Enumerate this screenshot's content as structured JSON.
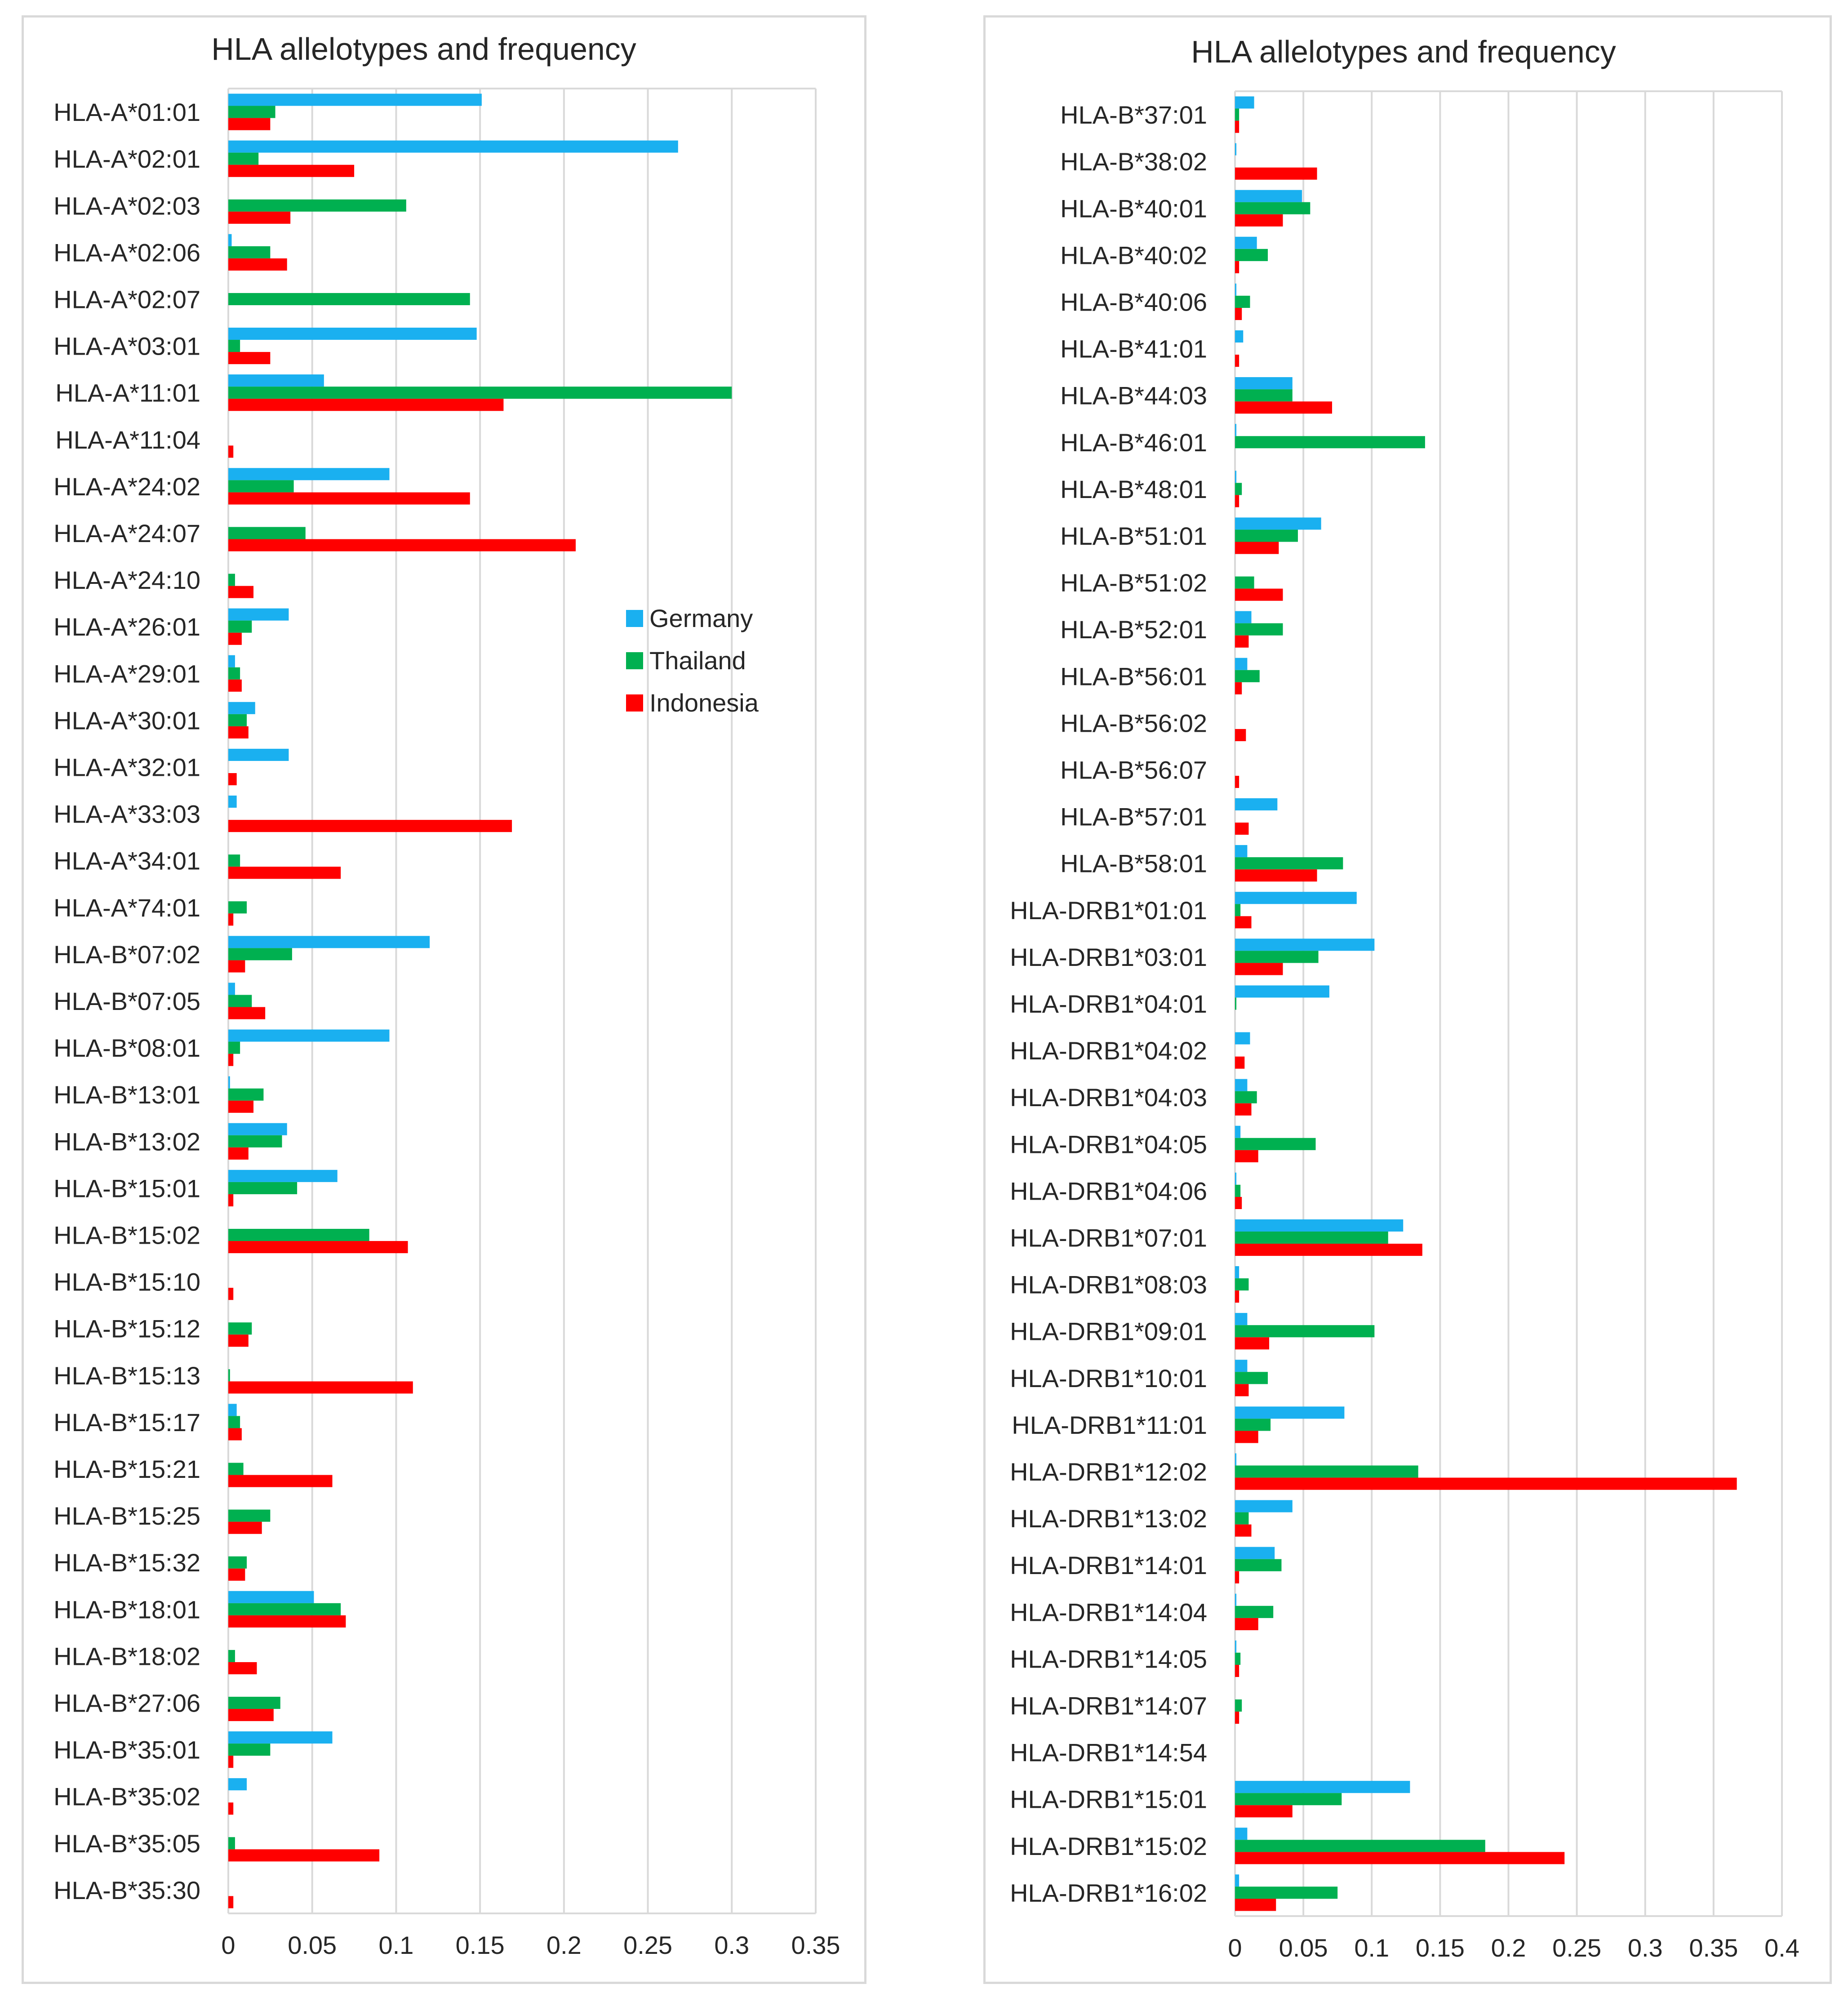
{
  "colors": {
    "Germany": "#1ab0f0",
    "Thailand": "#00b050",
    "Indonesia": "#ff0000",
    "grid": "#d9d9d9",
    "text": "#262626"
  },
  "chart_data": [
    {
      "type": "bar",
      "orientation": "horizontal",
      "title": "HLA allelotypes and frequency",
      "xlim": [
        0,
        0.35
      ],
      "xticks": [
        "0",
        "0.05",
        "0.1",
        "0.15",
        "0.2",
        "0.25",
        "0.3",
        "0.35"
      ],
      "legend": {
        "position": "right-middle",
        "entries": [
          "Germany",
          "Thailand",
          "Indonesia"
        ]
      },
      "categories": [
        "HLA-A*01:01",
        "HLA-A*02:01",
        "HLA-A*02:03",
        "HLA-A*02:06",
        "HLA-A*02:07",
        "HLA-A*03:01",
        "HLA-A*11:01",
        "HLA-A*11:04",
        "HLA-A*24:02",
        "HLA-A*24:07",
        "HLA-A*24:10",
        "HLA-A*26:01",
        "HLA-A*29:01",
        "HLA-A*30:01",
        "HLA-A*32:01",
        "HLA-A*33:03",
        "HLA-A*34:01",
        "HLA-A*74:01",
        "HLA-B*07:02",
        "HLA-B*07:05",
        "HLA-B*08:01",
        "HLA-B*13:01",
        "HLA-B*13:02",
        "HLA-B*15:01",
        "HLA-B*15:02",
        "HLA-B*15:10",
        "HLA-B*15:12",
        "HLA-B*15:13",
        "HLA-B*15:17",
        "HLA-B*15:21",
        "HLA-B*15:25",
        "HLA-B*15:32",
        "HLA-B*18:01",
        "HLA-B*18:02",
        "HLA-B*27:06",
        "HLA-B*35:01",
        "HLA-B*35:02",
        "HLA-B*35:05",
        "HLA-B*35:30"
      ],
      "series": [
        {
          "name": "Germany",
          "values": [
            0.151,
            0.268,
            0,
            0.002,
            0,
            0.148,
            0.057,
            0,
            0.096,
            0,
            0,
            0.036,
            0.004,
            0.016,
            0.036,
            0.005,
            0,
            0,
            0.12,
            0.004,
            0.096,
            0.001,
            0.035,
            0.065,
            0,
            0,
            0,
            0,
            0.005,
            0,
            0,
            0,
            0.051,
            0,
            0,
            0.062,
            0.011,
            0,
            0
          ]
        },
        {
          "name": "Thailand",
          "values": [
            0.028,
            0.018,
            0.106,
            0.025,
            0.144,
            0.007,
            0.3,
            0,
            0.039,
            0.046,
            0.004,
            0.014,
            0.007,
            0.011,
            0,
            0,
            0.007,
            0.011,
            0.038,
            0.014,
            0.007,
            0.021,
            0.032,
            0.041,
            0.084,
            0,
            0.014,
            0.001,
            0.007,
            0.009,
            0.025,
            0.011,
            0.067,
            0.004,
            0.031,
            0.025,
            0,
            0.004,
            0
          ]
        },
        {
          "name": "Indonesia",
          "values": [
            0.025,
            0.075,
            0.037,
            0.035,
            0,
            0.025,
            0.164,
            0.003,
            0.144,
            0.207,
            0.015,
            0.008,
            0.008,
            0.012,
            0.005,
            0.169,
            0.067,
            0.003,
            0.01,
            0.022,
            0.003,
            0.015,
            0.012,
            0.003,
            0.107,
            0.003,
            0.012,
            0.11,
            0.008,
            0.062,
            0.02,
            0.01,
            0.07,
            0.017,
            0.027,
            0.003,
            0.003,
            0.09,
            0.003
          ]
        }
      ]
    },
    {
      "type": "bar",
      "orientation": "horizontal",
      "title": "HLA allelotypes and frequency",
      "xlim": [
        0,
        0.4
      ],
      "xticks": [
        "0",
        "0.05",
        "0.1",
        "0.15",
        "0.2",
        "0.25",
        "0.3",
        "0.35",
        "0.4"
      ],
      "categories": [
        "HLA-B*37:01",
        "HLA-B*38:02",
        "HLA-B*40:01",
        "HLA-B*40:02",
        "HLA-B*40:06",
        "HLA-B*41:01",
        "HLA-B*44:03",
        "HLA-B*46:01",
        "HLA-B*48:01",
        "HLA-B*51:01",
        "HLA-B*51:02",
        "HLA-B*52:01",
        "HLA-B*56:01",
        "HLA-B*56:02",
        "HLA-B*56:07",
        "HLA-B*57:01",
        "HLA-B*58:01",
        "HLA-DRB1*01:01",
        "HLA-DRB1*03:01",
        "HLA-DRB1*04:01",
        "HLA-DRB1*04:02",
        "HLA-DRB1*04:03",
        "HLA-DRB1*04:05",
        "HLA-DRB1*04:06",
        "HLA-DRB1*07:01",
        "HLA-DRB1*08:03",
        "HLA-DRB1*09:01",
        "HLA-DRB1*10:01",
        "HLA-DRB1*11:01",
        "HLA-DRB1*12:02",
        "HLA-DRB1*13:02",
        "HLA-DRB1*14:01",
        "HLA-DRB1*14:04",
        "HLA-DRB1*14:05",
        "HLA-DRB1*14:07",
        "HLA-DRB1*14:54",
        "HLA-DRB1*15:01",
        "HLA-DRB1*15:02",
        "HLA-DRB1*16:02"
      ],
      "series": [
        {
          "name": "Germany",
          "values": [
            0.014,
            0.001,
            0.049,
            0.016,
            0.001,
            0.006,
            0.042,
            0.001,
            0.001,
            0.063,
            0,
            0.012,
            0.009,
            0,
            0,
            0.031,
            0.009,
            0.089,
            0.102,
            0.069,
            0.011,
            0.009,
            0.004,
            0.001,
            0.123,
            0.003,
            0.009,
            0.009,
            0.08,
            0.001,
            0.042,
            0.029,
            0.001,
            0.001,
            0,
            0,
            0.128,
            0.009,
            0.003
          ]
        },
        {
          "name": "Thailand",
          "values": [
            0.003,
            0,
            0.055,
            0.024,
            0.011,
            0,
            0.042,
            0.139,
            0.005,
            0.046,
            0.014,
            0.035,
            0.018,
            0,
            0,
            0,
            0.079,
            0.004,
            0.061,
            0.001,
            0,
            0.016,
            0.059,
            0.004,
            0.112,
            0.01,
            0.102,
            0.024,
            0.026,
            0.134,
            0.01,
            0.034,
            0.028,
            0.004,
            0.005,
            0,
            0.078,
            0.183,
            0.075
          ]
        },
        {
          "name": "Indonesia",
          "values": [
            0.003,
            0.06,
            0.035,
            0.003,
            0.005,
            0.003,
            0.071,
            0,
            0.003,
            0.032,
            0.035,
            0.01,
            0.005,
            0.008,
            0.003,
            0.01,
            0.06,
            0.012,
            0.035,
            0,
            0.007,
            0.012,
            0.017,
            0.005,
            0.137,
            0.003,
            0.025,
            0.01,
            0.017,
            0.367,
            0.012,
            0.003,
            0.017,
            0.003,
            0.003,
            0,
            0.042,
            0.241,
            0.03
          ]
        }
      ]
    }
  ]
}
